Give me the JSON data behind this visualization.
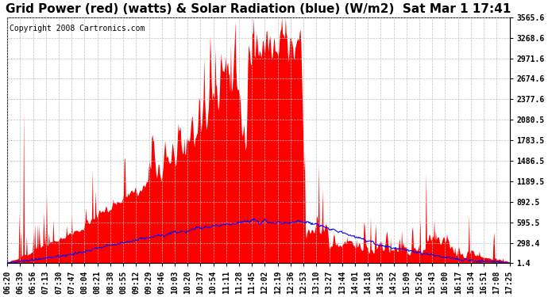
{
  "title": "Grid Power (red) (watts) & Solar Radiation (blue) (W/m2)  Sat Mar 1 17:41",
  "copyright": "Copyright 2008 Cartronics.com",
  "background_color": "#ffffff",
  "plot_bg_color": "#ffffff",
  "x_labels": [
    "06:20",
    "06:39",
    "06:56",
    "07:13",
    "07:30",
    "07:47",
    "08:04",
    "08:21",
    "08:38",
    "08:55",
    "09:12",
    "09:29",
    "09:46",
    "10:03",
    "10:20",
    "10:37",
    "10:54",
    "11:11",
    "11:28",
    "11:45",
    "12:02",
    "12:19",
    "12:36",
    "12:53",
    "13:10",
    "13:27",
    "13:44",
    "14:01",
    "14:18",
    "14:35",
    "14:52",
    "15:09",
    "15:26",
    "15:43",
    "16:00",
    "16:17",
    "16:34",
    "16:51",
    "17:08",
    "17:25"
  ],
  "yticks": [
    1.4,
    298.4,
    595.5,
    892.5,
    1189.5,
    1486.5,
    1783.5,
    2080.5,
    2377.6,
    2674.6,
    2971.6,
    3268.6,
    3565.6
  ],
  "ymin": 1.4,
  "ymax": 3565.6,
  "grid_color": "#c0c0c0",
  "red_color": "#ff0000",
  "blue_color": "#0000ff",
  "title_fontsize": 11,
  "tick_fontsize": 7,
  "copyright_fontsize": 7
}
